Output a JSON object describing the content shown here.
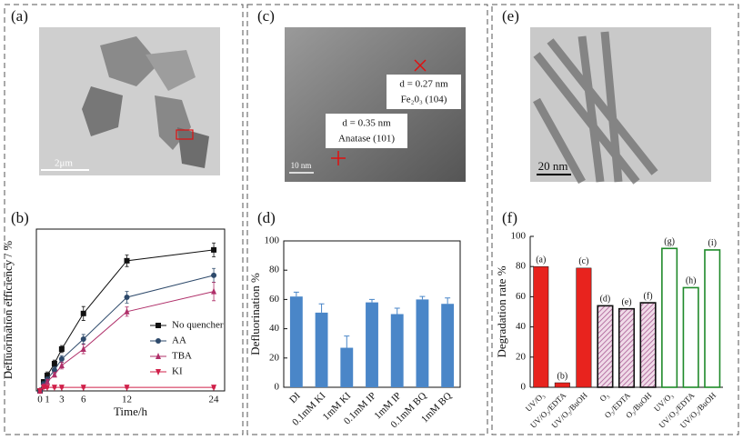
{
  "panels": {
    "labels": [
      "(a)",
      "(b)",
      "(c)",
      "(d)",
      "(e)",
      "(f)"
    ]
  },
  "images": {
    "a": {
      "scale_bar": "2μm"
    },
    "c": {
      "annotations": [
        "d = 0.27 nm",
        "Fe₂0₃ (104)",
        "d = 0.35 nm",
        "Anatase (101)"
      ],
      "scale_bar": "10 nm"
    },
    "e": {
      "scale_bar": "20 nm"
    }
  },
  "chart_data": [
    {
      "type": "line",
      "x_label": "Time/h",
      "y_label": "Defluorination efficiency / %",
      "x": [
        0,
        0.5,
        1,
        2,
        3,
        6,
        12,
        24
      ],
      "xlim": [
        -0.5,
        25.5
      ],
      "xticks": [
        0,
        1,
        3,
        6,
        12,
        24
      ],
      "ylim": [
        0,
        70
      ],
      "legend": "lower right",
      "series": [
        {
          "name": "No quencher",
          "color": "#111111",
          "marker": "square",
          "values": [
            0,
            3.9,
            6.7,
            11.8,
            18.1,
            33.5,
            56.3,
            61
          ],
          "errors": [
            0.5,
            1,
            1.5,
            1.5,
            1.5,
            3,
            2.5,
            3
          ]
        },
        {
          "name": "AA",
          "color": "#2e4a6b",
          "marker": "circle",
          "values": [
            0,
            3,
            5,
            9,
            13.8,
            22.4,
            40.5,
            50
          ],
          "errors": [
            0.5,
            1,
            1,
            1.5,
            1.5,
            2,
            2.5,
            3
          ]
        },
        {
          "name": "TBA",
          "color": "#b0306a",
          "marker": "triangle-up",
          "values": [
            0,
            2,
            4,
            7,
            11,
            18.1,
            34.3,
            43
          ],
          "errors": [
            0.5,
            1,
            1,
            1,
            1.5,
            2,
            2,
            4
          ]
        },
        {
          "name": "KI",
          "color": "#d0204a",
          "marker": "triangle-down",
          "values": [
            0,
            1.5,
            1.5,
            1.5,
            1.5,
            1.5,
            1.5,
            1.5
          ],
          "errors": [
            0.3,
            0.3,
            0.3,
            0.3,
            0.3,
            0.3,
            0.3,
            0.3
          ]
        }
      ]
    },
    {
      "type": "bar",
      "y_label": "Defluorination %",
      "categories": [
        "DI",
        "0.1mM KI",
        "1mM KI",
        "0.1mM IP",
        "1mM IP",
        "0.1mM BQ",
        "1mM BQ"
      ],
      "values": [
        62,
        51,
        27,
        58,
        50,
        60,
        57
      ],
      "errors": [
        3,
        6,
        8,
        2,
        4,
        2,
        4
      ],
      "color": "#4a86c8",
      "ylim": [
        0,
        100
      ],
      "yticks": [
        0,
        20,
        40,
        60,
        80,
        100
      ]
    },
    {
      "type": "bar",
      "y_label": "Degradation rate %",
      "categories": [
        "UV/O₃",
        "UV/O₃/EDTA",
        "UV/O₃/BuOH",
        "O₃",
        "O₃/EDTA",
        "O₃/BuOH",
        "UV/O₃",
        "UV/O₃/EDTA",
        "UV/O₃/BuOH"
      ],
      "values": [
        80,
        3,
        79,
        54,
        52,
        56,
        92,
        66,
        91
      ],
      "bar_labels": [
        "(a)",
        "(b)",
        "(c)",
        "(d)",
        "(e)",
        "(f)",
        "(g)",
        "(h)",
        "(i)"
      ],
      "colors": [
        "#e8231e",
        "#e8231e",
        "#e8231e",
        "#111111",
        "#111111",
        "#111111",
        "#1f8a2a",
        "#1f8a2a",
        "#1f8a2a"
      ],
      "styles": [
        "solid",
        "solid",
        "solid",
        "hatched",
        "hatched",
        "hatched",
        "outline",
        "outline",
        "outline"
      ],
      "ylim": [
        0,
        100
      ],
      "yticks": [
        0,
        20,
        40,
        60,
        80,
        100
      ]
    }
  ]
}
